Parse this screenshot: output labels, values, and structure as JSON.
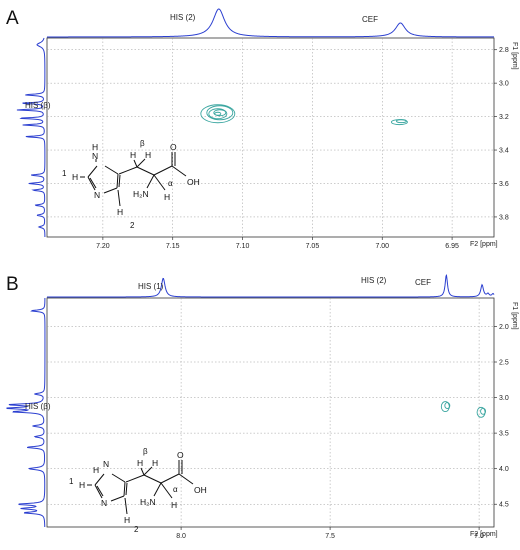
{
  "panels": {
    "A": {
      "letter": "A",
      "peak_labels": {
        "his2": "HIS (2)",
        "cef": "CEF",
        "his_beta": "HIS (β)"
      },
      "x_axis_label": "F2 [ppm]",
      "y_axis_label": "F1 [ppm]",
      "x_ticks": [
        "7.20",
        "7.15",
        "7.10",
        "7.05",
        "7.00",
        "6.95"
      ],
      "y_ticks": [
        "2.8",
        "3.0",
        "3.2",
        "3.4",
        "3.6",
        "3.8"
      ]
    },
    "B": {
      "letter": "B",
      "peak_labels": {
        "his1": "HIS (1)",
        "his2": "HIS (2)",
        "cef": "CEF",
        "his_beta": "HIS (β)"
      },
      "x_axis_label": "F2 [ppm]",
      "y_axis_label": "F1 [ppm]",
      "x_ticks": [
        "8.0",
        "7.5",
        "7.0"
      ],
      "y_ticks": [
        "2.0",
        "2.5",
        "3.0",
        "3.5",
        "4.0",
        "4.5"
      ]
    }
  },
  "structure_labels": {
    "position_1": "1",
    "position_2": "2",
    "n_h_ring": "N",
    "h_ring": "H",
    "n_ring": "N",
    "h_left": "H",
    "h_bottom": "H",
    "beta": "β",
    "alpha": "α",
    "h_beta_1": "H",
    "h_beta_2": "H",
    "nh2": "H₂N",
    "h_alpha": "H",
    "oxygen": "O",
    "oh": "OH"
  },
  "chart_data": [
    {
      "type": "scatter",
      "title": "A",
      "xlabel": "F2 [ppm]",
      "ylabel": "F1 [ppm]",
      "xlim": [
        7.24,
        6.92
      ],
      "ylim": [
        3.92,
        2.73
      ],
      "x_reversed": true,
      "y_reversed": true,
      "grid": true,
      "series": [
        {
          "name": "HIS (2) / HIS (β)",
          "points": [
            {
              "x": 7.117,
              "y": 3.18
            }
          ],
          "color": "#3aa6a0"
        },
        {
          "name": "CEF",
          "points": [
            {
              "x": 6.987,
              "y": 3.23
            }
          ],
          "color": "#3aa6a0"
        }
      ],
      "projection_f2_peaks": [
        {
          "x": 7.117,
          "label": "HIS (2)"
        },
        {
          "x": 6.987,
          "label": "CEF"
        }
      ],
      "projection_f1_peaks": [
        {
          "y": 3.18,
          "label": "HIS (β)"
        }
      ],
      "projection_color": "#2b3fd0"
    },
    {
      "type": "scatter",
      "title": "B",
      "xlabel": "F2 [ppm]",
      "ylabel": "F1 [ppm]",
      "xlim": [
        8.45,
        6.95
      ],
      "ylim": [
        4.82,
        1.6
      ],
      "x_reversed": true,
      "y_reversed": true,
      "grid": true,
      "series": [
        {
          "name": "HIS (2) / HIS (β)",
          "points": [
            {
              "x": 7.11,
              "y": 3.12
            }
          ],
          "color": "#3aa6a0"
        },
        {
          "name": "CEF",
          "points": [
            {
              "x": 6.99,
              "y": 3.2
            }
          ],
          "color": "#3aa6a0"
        }
      ],
      "projection_f2_peaks": [
        {
          "x": 8.06,
          "label": "HIS (1)"
        },
        {
          "x": 7.11,
          "label": "HIS (2)"
        },
        {
          "x": 6.99,
          "label": "CEF"
        }
      ],
      "projection_f1_peaks": [
        {
          "y": 3.15,
          "label": "HIS (β)"
        }
      ],
      "projection_color": "#2b3fd0"
    }
  ]
}
